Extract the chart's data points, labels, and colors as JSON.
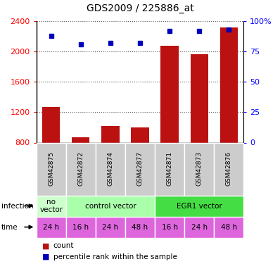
{
  "title": "GDS2009 / 225886_at",
  "samples": [
    "GSM42875",
    "GSM42872",
    "GSM42874",
    "GSM42877",
    "GSM42871",
    "GSM42873",
    "GSM42876"
  ],
  "counts": [
    1270,
    870,
    1020,
    1000,
    2080,
    1960,
    2320
  ],
  "percentiles": [
    88,
    81,
    82,
    82,
    92,
    92,
    93
  ],
  "ylim_left": [
    800,
    2400
  ],
  "ylim_right": [
    0,
    100
  ],
  "yticks_left": [
    800,
    1200,
    1600,
    2000,
    2400
  ],
  "yticks_right": [
    0,
    25,
    50,
    75,
    100
  ],
  "time_labels": [
    "24 h",
    "16 h",
    "24 h",
    "48 h",
    "16 h",
    "24 h",
    "48 h"
  ],
  "bar_color": "#bb1111",
  "dot_color": "#0000bb",
  "grid_color": "#555555",
  "sample_bg": "#cccccc",
  "no_vector_color": "#ccffcc",
  "control_vector_color": "#aaffaa",
  "egr1_vector_color": "#44dd44",
  "time_color": "#dd66dd",
  "inf_groups": [
    [
      0,
      1,
      "#ccffcc",
      "no\nvector"
    ],
    [
      1,
      4,
      "#aaffaa",
      "control vector"
    ],
    [
      4,
      7,
      "#44dd44",
      "EGR1 vector"
    ]
  ]
}
